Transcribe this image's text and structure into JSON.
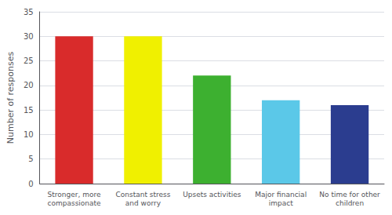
{
  "chart_data": {
    "type": "bar",
    "categories": [
      "Stronger, more\ncompassionate",
      "Constant stress\nand worry",
      "Upsets activities",
      "Major financial\nimpact",
      "No time for other\nchildren"
    ],
    "values": [
      30,
      30,
      22,
      17,
      16
    ],
    "colors": [
      "#d92b2b",
      "#f0f000",
      "#3db030",
      "#5bc8e8",
      "#2b3d8f"
    ],
    "ylabel": "Number of responses",
    "ylim": [
      0,
      35
    ],
    "yticks": [
      0,
      5,
      10,
      15,
      20,
      25,
      30,
      35
    ],
    "grid": true
  }
}
